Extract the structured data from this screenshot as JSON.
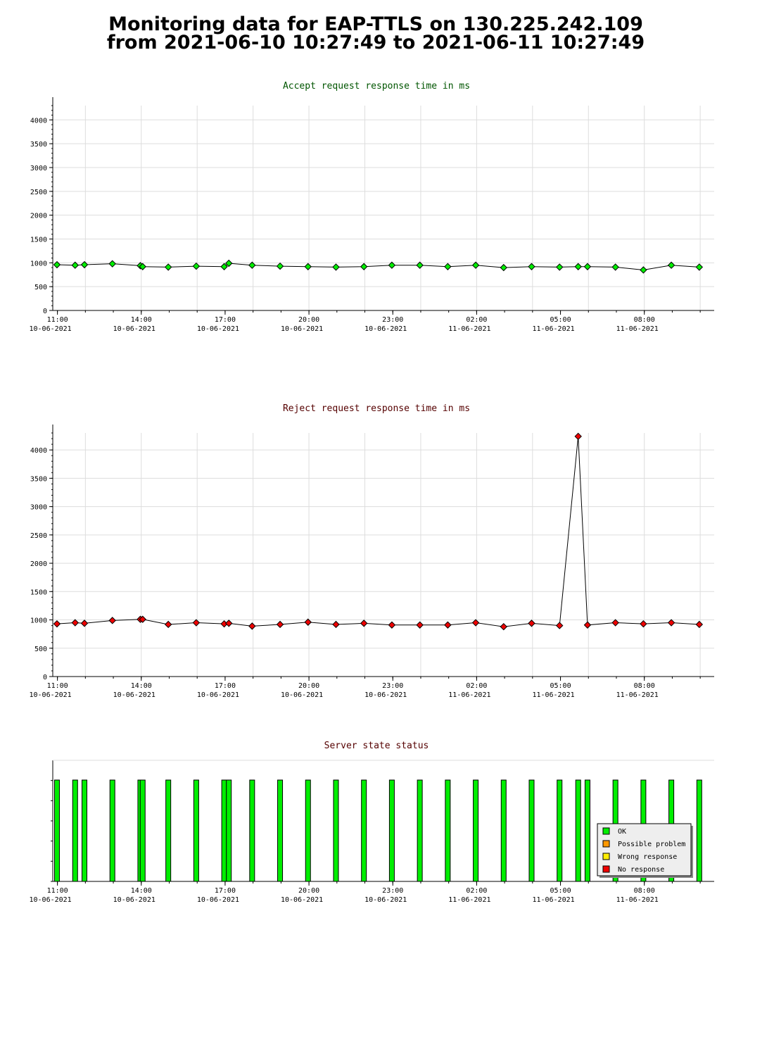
{
  "page": {
    "title_line1": "Monitoring data for EAP-TTLS on 130.225.242.109",
    "title_line2": "from 2021-06-10 10:27:49 to 2021-06-11 10:27:49"
  },
  "colors": {
    "accept_title": "#005500",
    "reject_title": "#550000",
    "accept_series": "#00ee00",
    "reject_series": "#ee0000",
    "grid": "#dddddd",
    "ok": "#00ee00",
    "possible_problem": "#ff9900",
    "wrong_response": "#ffee00",
    "no_response": "#ee0000"
  },
  "chart_data": [
    {
      "type": "line",
      "title": "Accept request response time in ms",
      "xlabel": "",
      "ylabel": "",
      "ylim": [
        0,
        4300
      ],
      "xlim": [
        "2021-06-10 10:50",
        "2021-06-11 10:30"
      ],
      "yticks": [
        0,
        500,
        1000,
        1500,
        2000,
        2500,
        3000,
        3500,
        4000
      ],
      "xticks": [
        {
          "time": "2021-06-10 11:00",
          "label1": "11:00",
          "label2": "10-06-2021"
        },
        {
          "time": "2021-06-10 14:00",
          "label1": "14:00",
          "label2": "10-06-2021"
        },
        {
          "time": "2021-06-10 17:00",
          "label1": "17:00",
          "label2": "10-06-2021"
        },
        {
          "time": "2021-06-10 20:00",
          "label1": "20:00",
          "label2": "10-06-2021"
        },
        {
          "time": "2021-06-10 23:00",
          "label1": "23:00",
          "label2": "10-06-2021"
        },
        {
          "time": "2021-06-11 02:00",
          "label1": "02:00",
          "label2": "11-06-2021"
        },
        {
          "time": "2021-06-11 05:00",
          "label1": "05:00",
          "label2": "11-06-2021"
        },
        {
          "time": "2021-06-11 08:00",
          "label1": "08:00",
          "label2": "11-06-2021"
        }
      ],
      "grid": true,
      "series": [
        {
          "color": "#00ee00",
          "x": [
            "2021-06-10 10:59",
            "2021-06-10 11:38",
            "2021-06-10 11:58",
            "2021-06-10 12:58",
            "2021-06-10 13:58",
            "2021-06-10 14:03",
            "2021-06-10 14:58",
            "2021-06-10 15:58",
            "2021-06-10 16:58",
            "2021-06-10 17:08",
            "2021-06-10 17:58",
            "2021-06-10 18:58",
            "2021-06-10 19:58",
            "2021-06-10 20:58",
            "2021-06-10 21:58",
            "2021-06-10 22:58",
            "2021-06-10 23:58",
            "2021-06-11 00:58",
            "2021-06-11 01:58",
            "2021-06-11 02:58",
            "2021-06-11 03:58",
            "2021-06-11 04:58",
            "2021-06-11 05:38",
            "2021-06-11 05:58",
            "2021-06-11 06:58",
            "2021-06-11 07:58",
            "2021-06-11 08:58",
            "2021-06-11 09:58"
          ],
          "y": [
            960,
            950,
            960,
            980,
            940,
            920,
            910,
            930,
            920,
            990,
            950,
            930,
            920,
            910,
            920,
            950,
            950,
            920,
            950,
            900,
            920,
            910,
            920,
            920,
            910,
            850,
            950,
            910
          ]
        }
      ]
    },
    {
      "type": "line",
      "title": "Reject request response time in ms",
      "xlabel": "",
      "ylabel": "",
      "ylim": [
        0,
        4300
      ],
      "xlim": [
        "2021-06-10 10:50",
        "2021-06-11 10:30"
      ],
      "yticks": [
        0,
        500,
        1000,
        1500,
        2000,
        2500,
        3000,
        3500,
        4000
      ],
      "xticks": [
        {
          "time": "2021-06-10 11:00",
          "label1": "11:00",
          "label2": "10-06-2021"
        },
        {
          "time": "2021-06-10 14:00",
          "label1": "14:00",
          "label2": "10-06-2021"
        },
        {
          "time": "2021-06-10 17:00",
          "label1": "17:00",
          "label2": "10-06-2021"
        },
        {
          "time": "2021-06-10 20:00",
          "label1": "20:00",
          "label2": "10-06-2021"
        },
        {
          "time": "2021-06-10 23:00",
          "label1": "23:00",
          "label2": "10-06-2021"
        },
        {
          "time": "2021-06-11 02:00",
          "label1": "02:00",
          "label2": "11-06-2021"
        },
        {
          "time": "2021-06-11 05:00",
          "label1": "05:00",
          "label2": "11-06-2021"
        },
        {
          "time": "2021-06-11 08:00",
          "label1": "08:00",
          "label2": "11-06-2021"
        }
      ],
      "grid": true,
      "series": [
        {
          "color": "#ee0000",
          "x": [
            "2021-06-10 10:59",
            "2021-06-10 11:38",
            "2021-06-10 11:58",
            "2021-06-10 12:58",
            "2021-06-10 13:58",
            "2021-06-10 14:03",
            "2021-06-10 14:58",
            "2021-06-10 15:58",
            "2021-06-10 16:58",
            "2021-06-10 17:08",
            "2021-06-10 17:58",
            "2021-06-10 18:58",
            "2021-06-10 19:58",
            "2021-06-10 20:58",
            "2021-06-10 21:58",
            "2021-06-10 22:58",
            "2021-06-10 23:58",
            "2021-06-11 00:58",
            "2021-06-11 01:58",
            "2021-06-11 02:58",
            "2021-06-11 03:58",
            "2021-06-11 04:58",
            "2021-06-11 05:38",
            "2021-06-11 05:58",
            "2021-06-11 06:58",
            "2021-06-11 07:58",
            "2021-06-11 08:58",
            "2021-06-11 09:58"
          ],
          "y": [
            930,
            950,
            940,
            990,
            1010,
            1010,
            920,
            950,
            930,
            940,
            890,
            920,
            960,
            920,
            940,
            910,
            910,
            910,
            950,
            880,
            940,
            900,
            4240,
            910,
            950,
            930,
            950,
            920
          ]
        }
      ]
    },
    {
      "type": "bar",
      "title": "Server state status",
      "xlim": [
        "2021-06-10 10:50",
        "2021-06-11 10:30"
      ],
      "xticks": [
        {
          "time": "2021-06-10 11:00",
          "label1": "11:00",
          "label2": "10-06-2021"
        },
        {
          "time": "2021-06-10 14:00",
          "label1": "14:00",
          "label2": "10-06-2021"
        },
        {
          "time": "2021-06-10 17:00",
          "label1": "17:00",
          "label2": "10-06-2021"
        },
        {
          "time": "2021-06-10 20:00",
          "label1": "20:00",
          "label2": "10-06-2021"
        },
        {
          "time": "2021-06-10 23:00",
          "label1": "23:00",
          "label2": "10-06-2021"
        },
        {
          "time": "2021-06-11 02:00",
          "label1": "02:00",
          "label2": "11-06-2021"
        },
        {
          "time": "2021-06-11 05:00",
          "label1": "05:00",
          "label2": "11-06-2021"
        },
        {
          "time": "2021-06-11 08:00",
          "label1": "08:00",
          "label2": "11-06-2021"
        }
      ],
      "legend_position": "bottom-right",
      "legend": [
        {
          "label": "OK",
          "color": "#00ee00"
        },
        {
          "label": "Possible problem",
          "color": "#ff9900"
        },
        {
          "label": "Wrong response",
          "color": "#ffee00"
        },
        {
          "label": "No response",
          "color": "#ee0000"
        }
      ],
      "events": [
        {
          "time": "2021-06-10 10:59",
          "state": "OK"
        },
        {
          "time": "2021-06-10 11:38",
          "state": "OK"
        },
        {
          "time": "2021-06-10 11:58",
          "state": "OK"
        },
        {
          "time": "2021-06-10 12:58",
          "state": "OK"
        },
        {
          "time": "2021-06-10 13:58",
          "state": "OK"
        },
        {
          "time": "2021-06-10 14:03",
          "state": "OK"
        },
        {
          "time": "2021-06-10 14:58",
          "state": "OK"
        },
        {
          "time": "2021-06-10 15:58",
          "state": "OK"
        },
        {
          "time": "2021-06-10 16:58",
          "state": "OK"
        },
        {
          "time": "2021-06-10 17:08",
          "state": "OK"
        },
        {
          "time": "2021-06-10 17:58",
          "state": "OK"
        },
        {
          "time": "2021-06-10 18:58",
          "state": "OK"
        },
        {
          "time": "2021-06-10 19:58",
          "state": "OK"
        },
        {
          "time": "2021-06-10 20:58",
          "state": "OK"
        },
        {
          "time": "2021-06-10 21:58",
          "state": "OK"
        },
        {
          "time": "2021-06-10 22:58",
          "state": "OK"
        },
        {
          "time": "2021-06-10 23:58",
          "state": "OK"
        },
        {
          "time": "2021-06-11 00:58",
          "state": "OK"
        },
        {
          "time": "2021-06-11 01:58",
          "state": "OK"
        },
        {
          "time": "2021-06-11 02:58",
          "state": "OK"
        },
        {
          "time": "2021-06-11 03:58",
          "state": "OK"
        },
        {
          "time": "2021-06-11 04:58",
          "state": "OK"
        },
        {
          "time": "2021-06-11 05:38",
          "state": "OK"
        },
        {
          "time": "2021-06-11 05:58",
          "state": "OK"
        },
        {
          "time": "2021-06-11 06:58",
          "state": "OK"
        },
        {
          "time": "2021-06-11 07:58",
          "state": "OK"
        },
        {
          "time": "2021-06-11 08:58",
          "state": "OK"
        },
        {
          "time": "2021-06-11 09:58",
          "state": "OK"
        }
      ]
    }
  ]
}
